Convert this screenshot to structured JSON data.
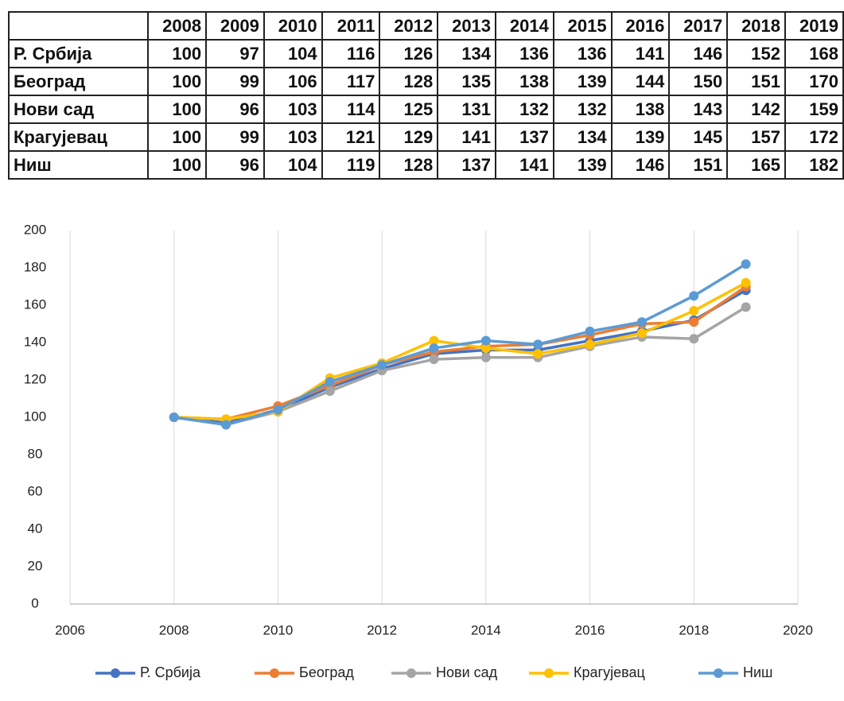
{
  "table": {
    "header": [
      2008,
      2009,
      2010,
      2011,
      2012,
      2013,
      2014,
      2015,
      2016,
      2017,
      2018,
      2019
    ],
    "rows": [
      {
        "label": "Р. Србија",
        "values": [
          100,
          97,
          104,
          116,
          126,
          134,
          136,
          136,
          141,
          146,
          152,
          168
        ]
      },
      {
        "label": "Београд",
        "values": [
          100,
          99,
          106,
          117,
          128,
          135,
          138,
          139,
          144,
          150,
          151,
          170
        ]
      },
      {
        "label": "Нови сад",
        "values": [
          100,
          96,
          103,
          114,
          125,
          131,
          132,
          132,
          138,
          143,
          142,
          159
        ]
      },
      {
        "label": "Крагујевац",
        "values": [
          100,
          99,
          103,
          121,
          129,
          141,
          137,
          134,
          139,
          145,
          157,
          172
        ]
      },
      {
        "label": "Ниш",
        "values": [
          100,
          96,
          104,
          119,
          128,
          137,
          141,
          139,
          146,
          151,
          165,
          182
        ]
      }
    ]
  },
  "chart_data": {
    "type": "line",
    "x": [
      2008,
      2009,
      2010,
      2011,
      2012,
      2013,
      2014,
      2015,
      2016,
      2017,
      2018,
      2019
    ],
    "series": [
      {
        "name": "Р. Србија",
        "color": "#4472c4",
        "values": [
          100,
          97,
          104,
          116,
          126,
          134,
          136,
          136,
          141,
          146,
          152,
          168
        ]
      },
      {
        "name": "Београд",
        "color": "#ed7d31",
        "values": [
          100,
          99,
          106,
          117,
          128,
          135,
          138,
          139,
          144,
          150,
          151,
          170
        ]
      },
      {
        "name": "Нови сад",
        "color": "#a5a5a5",
        "values": [
          100,
          96,
          103,
          114,
          125,
          131,
          132,
          132,
          138,
          143,
          142,
          159
        ]
      },
      {
        "name": "Крагујевац",
        "color": "#ffc000",
        "values": [
          100,
          99,
          103,
          121,
          129,
          141,
          137,
          134,
          139,
          145,
          157,
          172
        ]
      },
      {
        "name": "Ниш",
        "color": "#5b9bd5",
        "values": [
          100,
          96,
          104,
          119,
          128,
          137,
          141,
          139,
          146,
          151,
          165,
          182
        ]
      }
    ],
    "xlim": [
      2006,
      2020
    ],
    "xticks": [
      2006,
      2008,
      2010,
      2012,
      2014,
      2016,
      2018,
      2020
    ],
    "ylim": [
      0,
      200
    ],
    "yticks": [
      0,
      20,
      40,
      60,
      80,
      100,
      120,
      140,
      160,
      180,
      200
    ],
    "grid": "x",
    "legend": "bottom"
  }
}
